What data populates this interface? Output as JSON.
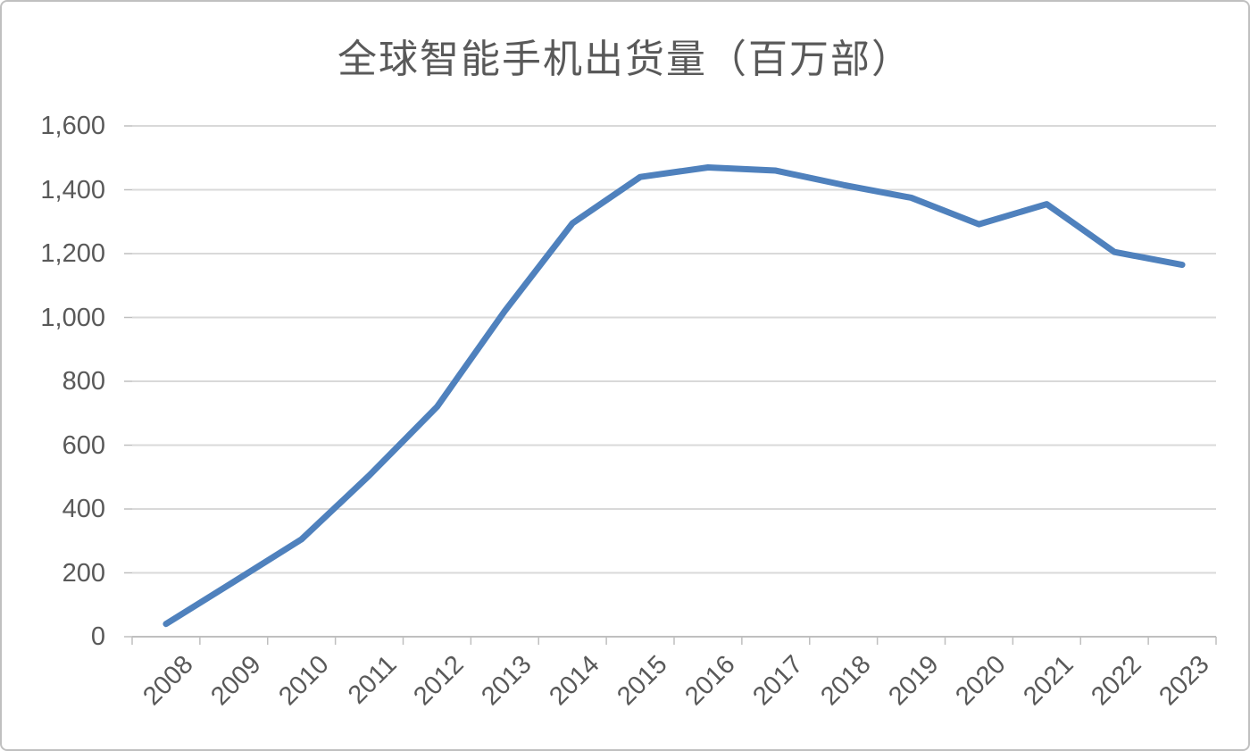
{
  "chart_data": {
    "type": "line",
    "title": "全球智能手机出货量（百万部）",
    "categories": [
      "2008",
      "2009",
      "2010",
      "2011",
      "2012",
      "2013",
      "2014",
      "2015",
      "2016",
      "2017",
      "2018",
      "2019",
      "2020",
      "2021",
      "2022",
      "2023"
    ],
    "values": [
      40,
      172,
      305,
      505,
      720,
      1020,
      1295,
      1440,
      1470,
      1460,
      1415,
      1375,
      1292,
      1355,
      1205,
      1165
    ],
    "xlabel": "",
    "ylabel": "",
    "ylim": [
      0,
      1600
    ],
    "y_tick_step": 200,
    "y_tick_labels": [
      "0",
      "200",
      "400",
      "600",
      "800",
      "1,000",
      "1,200",
      "1,400",
      "1,600"
    ],
    "grid": "horizontal",
    "legend": "none",
    "colors": {
      "line": "#4f81bd",
      "gridline": "#d9d9d9",
      "axis": "#bfbfbf",
      "tick_label": "#595959",
      "title": "#595959",
      "frame_border": "#c0c0c0",
      "background": "#ffffff"
    }
  }
}
